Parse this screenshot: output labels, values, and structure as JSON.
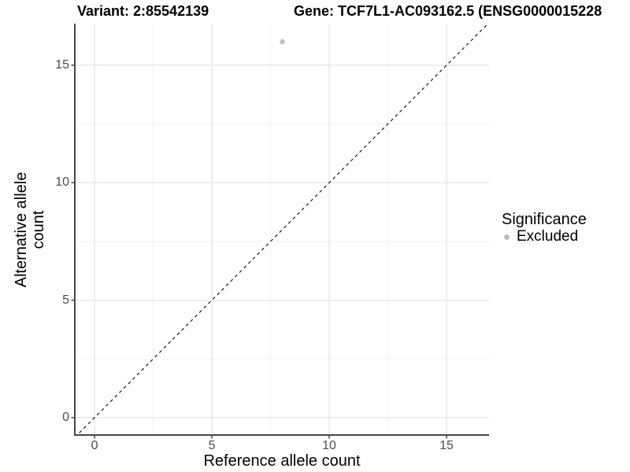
{
  "header": {
    "variant_title": "Variant: 2:85542139",
    "gene_title": "Gene: TCF7L1-AC093162.5 (ENSG0000015228"
  },
  "chart_data": {
    "type": "scatter",
    "title": "Variant: 2:85542139   Gene: TCF7L1-AC093162.5 (ENSG0000015228",
    "xlabel": "Reference allele count",
    "ylabel": "Alternative allele count",
    "xlim": [
      -0.84,
      16.81
    ],
    "ylim": [
      -0.74,
      16.77
    ],
    "x_ticks": [
      0,
      5,
      10,
      15
    ],
    "y_ticks": [
      0,
      5,
      10,
      15
    ],
    "x_minor_ticks": [
      2.5,
      7.5,
      12.5
    ],
    "y_minor_ticks": [
      2.5,
      7.5,
      12.5
    ],
    "grid": "major and minor, light gray on white",
    "identity_line": {
      "equation": "y = x",
      "style": "dashed",
      "color": "#1a1a1a"
    },
    "series": [
      {
        "name": "Excluded",
        "color": "#c0c0c0",
        "points": [
          {
            "x": 8,
            "y": 16
          }
        ]
      }
    ],
    "legend": {
      "title": "Significance",
      "position": "right",
      "entries": [
        {
          "label": "Excluded",
          "color": "#bfbfbf"
        }
      ]
    },
    "colors": {
      "axis_line": "#464646",
      "major_grid": "#e2e2e2",
      "minor_grid": "#f0f0f0",
      "tick_text": "#4d4d4d",
      "background": "#ffffff"
    }
  }
}
